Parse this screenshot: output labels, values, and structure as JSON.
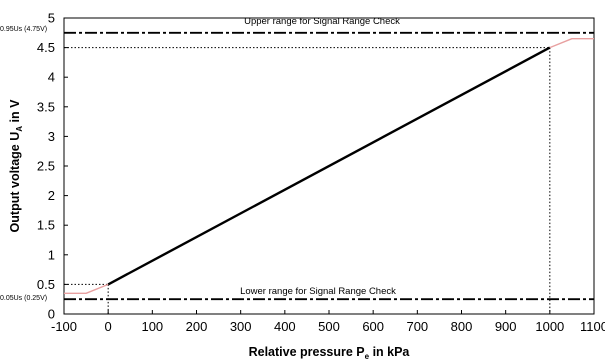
{
  "chart_data": {
    "type": "line",
    "xlabel": {
      "main": "Relative pressure P",
      "sub": "e",
      "unit": " in kPa"
    },
    "ylabel": {
      "main": "Output voltage U",
      "sub": "A",
      "unit": "  in V"
    },
    "xlim": [
      -100,
      1100
    ],
    "ylim": [
      0,
      5
    ],
    "x_ticks": [
      "-100",
      "0",
      "100",
      "200",
      "300",
      "400",
      "500",
      "600",
      "700",
      "800",
      "900",
      "1000",
      "1100"
    ],
    "y_ticks": [
      "0",
      "0.5",
      "1",
      "1.5",
      "2",
      "2.5",
      "3",
      "3.5",
      "4",
      "4.5",
      "5"
    ],
    "grid": false,
    "series": [
      {
        "points": [
          [
            0,
            0.5
          ],
          [
            1000,
            4.5
          ]
        ],
        "color": "#000000"
      },
      {
        "points": [
          [
            -100,
            0.35
          ],
          [
            -50,
            0.35
          ],
          [
            0,
            0.5
          ]
        ],
        "color": "#e8a0a0"
      },
      {
        "points": [
          [
            1000,
            4.5
          ],
          [
            1050,
            4.65
          ],
          [
            1100,
            4.65
          ]
        ],
        "color": "#e8a0a0"
      }
    ],
    "reference_lines": [
      {
        "y": 4.75,
        "label": "Upper range for Signal Range Check",
        "tick_label": "0.95Us (4.75V)"
      },
      {
        "y": 0.25,
        "label": "Lower range for Signal Range Check",
        "tick_label": "0.05Us (0.25V)"
      }
    ],
    "guide_points": [
      {
        "x": 0,
        "y": 0.5
      },
      {
        "x": 1000,
        "y": 4.5
      }
    ]
  }
}
